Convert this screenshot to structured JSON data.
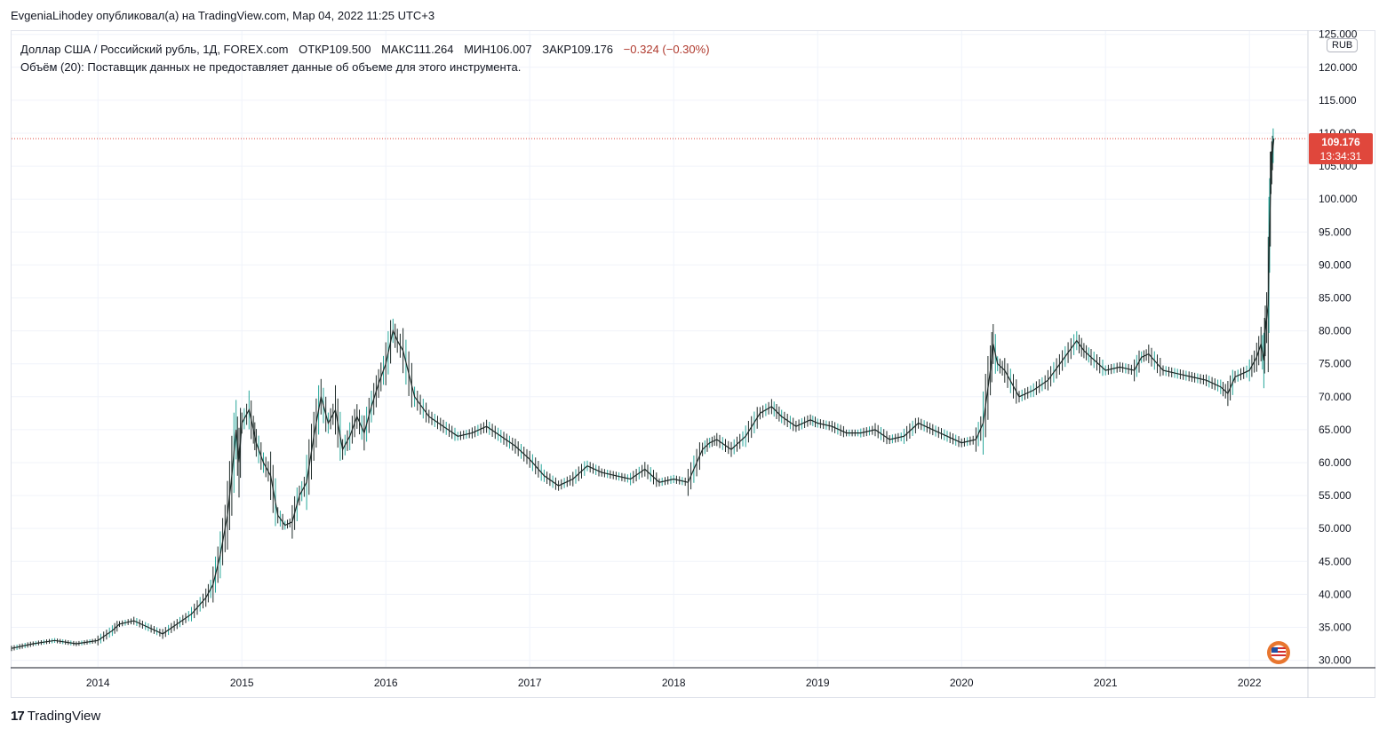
{
  "header": {
    "publisher_line": "EvgeniaLihodey опубликовал(а) на TradingView.com, Мар 04, 2022 11:25 UTC+3"
  },
  "legend": {
    "symbol": "Доллар США / Российский рубль, 1Д, FOREX.com",
    "open_label": "ОТКР",
    "open": "109.500",
    "high_label": "МАКС",
    "high": "111.264",
    "low_label": "МИН",
    "low": "106.007",
    "close_label": "ЗАКР",
    "close": "109.176",
    "change": "−0.324 (−0.30%)",
    "volume_line": "Объём (20): Поставщик данных не предоставляет данные об объеме для этого инструмента."
  },
  "price_axis": {
    "currency": "RUB",
    "last_price": "109.176",
    "countdown": "13:34:31"
  },
  "branding": {
    "logo_mark": "17",
    "logo_text": "TradingView"
  },
  "colors": {
    "up": "#26a69a",
    "candle": "#1e2a28",
    "last_price": "#e0473c",
    "grid": "#f0f3fa"
  },
  "chart_data": {
    "type": "line",
    "title": "Доллар США / Российский рубль, 1Д, FOREX.com",
    "x_ticks": [
      "2014",
      "2015",
      "2016",
      "2017",
      "2018",
      "2019",
      "2020",
      "2021",
      "2022"
    ],
    "y_ticks": [
      "30.000",
      "35.000",
      "40.000",
      "45.000",
      "50.000",
      "55.000",
      "60.000",
      "65.000",
      "70.000",
      "75.000",
      "80.000",
      "85.000",
      "90.000",
      "95.000",
      "100.000",
      "105.000",
      "110.000",
      "115.000",
      "120.000",
      "125.000"
    ],
    "ylim": [
      29,
      125.5
    ],
    "xlim": [
      2013.4,
      2022.4
    ],
    "last_price_value": 109.176,
    "grid": true,
    "series": [
      {
        "x": [
          2013.4,
          2013.55,
          2013.7,
          2013.85,
          2014.0,
          2014.1,
          2014.15,
          2014.25,
          2014.35,
          2014.45,
          2014.55,
          2014.65,
          2014.75,
          2014.8,
          2014.85,
          2014.9,
          2014.93,
          2014.96,
          2014.98,
          2015.0,
          2015.05,
          2015.08,
          2015.1,
          2015.15,
          2015.2,
          2015.25,
          2015.3,
          2015.35,
          2015.4,
          2015.45,
          2015.5,
          2015.55,
          2015.6,
          2015.65,
          2015.7,
          2015.75,
          2015.8,
          2015.85,
          2015.9,
          2015.95,
          2016.0,
          2016.05,
          2016.08,
          2016.12,
          2016.2,
          2016.3,
          2016.4,
          2016.5,
          2016.6,
          2016.7,
          2016.8,
          2016.9,
          2017.0,
          2017.1,
          2017.2,
          2017.3,
          2017.4,
          2017.5,
          2017.6,
          2017.7,
          2017.8,
          2017.9,
          2018.0,
          2018.1,
          2018.2,
          2018.25,
          2018.3,
          2018.4,
          2018.5,
          2018.6,
          2018.68,
          2018.75,
          2018.85,
          2018.95,
          2019.0,
          2019.1,
          2019.2,
          2019.3,
          2019.4,
          2019.5,
          2019.6,
          2019.7,
          2019.8,
          2019.9,
          2020.0,
          2020.1,
          2020.15,
          2020.2,
          2020.22,
          2020.25,
          2020.3,
          2020.4,
          2020.5,
          2020.6,
          2020.7,
          2020.8,
          2020.85,
          2020.9,
          2021.0,
          2021.1,
          2021.2,
          2021.25,
          2021.3,
          2021.4,
          2021.5,
          2021.6,
          2021.7,
          2021.8,
          2021.85,
          2021.9,
          2022.0,
          2022.05,
          2022.08,
          2022.1,
          2022.11,
          2022.13,
          2022.14,
          2022.15,
          2022.16,
          2022.17
        ],
        "values": [
          31.8,
          32.5,
          33.0,
          32.5,
          33.0,
          34.5,
          35.5,
          36.0,
          35.0,
          34.0,
          35.5,
          37.0,
          39.5,
          41.5,
          46.0,
          52.0,
          58.0,
          65.0,
          60.0,
          66.0,
          68.0,
          65.0,
          63.0,
          60.0,
          58.0,
          52.0,
          50.5,
          51.0,
          55.0,
          57.0,
          64.0,
          70.0,
          66.0,
          68.0,
          62.0,
          64.0,
          67.0,
          64.5,
          68.5,
          72.0,
          75.0,
          80.0,
          78.5,
          77.0,
          70.0,
          67.0,
          65.5,
          64.0,
          64.5,
          65.5,
          64.0,
          62.5,
          60.5,
          58.0,
          56.5,
          57.5,
          59.5,
          58.5,
          58.0,
          57.5,
          59.0,
          57.0,
          57.5,
          57.0,
          62.0,
          63.0,
          63.5,
          62.0,
          64.0,
          67.5,
          68.5,
          67.0,
          65.5,
          66.5,
          66.0,
          65.5,
          64.5,
          64.5,
          65.0,
          63.5,
          64.0,
          66.0,
          65.0,
          64.0,
          63.0,
          63.5,
          66.0,
          74.0,
          78.0,
          75.0,
          74.0,
          70.0,
          71.0,
          72.5,
          75.5,
          78.5,
          77.0,
          76.0,
          74.0,
          74.5,
          74.0,
          76.0,
          76.5,
          74.0,
          73.5,
          73.0,
          72.5,
          71.5,
          70.5,
          73.0,
          74.0,
          76.0,
          78.0,
          75.5,
          80.0,
          84.0,
          96.0,
          104.0,
          107.0,
          109.2
        ]
      }
    ]
  }
}
